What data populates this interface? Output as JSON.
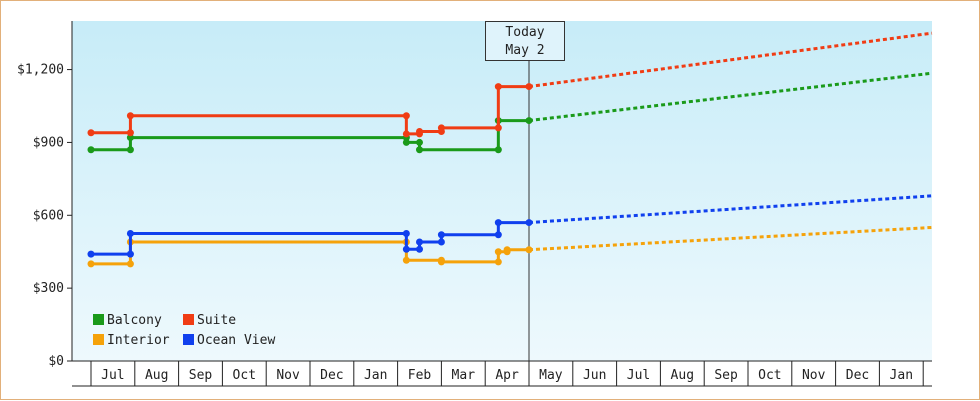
{
  "chart_data": {
    "type": "line",
    "title": "",
    "xlabel": "",
    "ylabel": "",
    "ylim": [
      0,
      1200
    ],
    "yticks": [
      "$0",
      "$300",
      "$600",
      "$900",
      "$1,200"
    ],
    "ytick_values": [
      0,
      300,
      600,
      900,
      1200
    ],
    "x_month_ticks": [
      "Jul",
      "Aug",
      "Sep",
      "Oct",
      "Nov",
      "Dec",
      "Jan",
      "Feb",
      "Mar",
      "Apr",
      "May",
      "Jun",
      "Jul",
      "Aug",
      "Sep",
      "Oct",
      "Nov",
      "Dec",
      "Jan"
    ],
    "today_marker": {
      "line1": "Today",
      "line2": "May 2"
    },
    "grid": false,
    "legend_position": "bottom-left",
    "series": [
      {
        "name": "Balcony",
        "color": "#1a9a1a",
        "history": [
          [
            0.0,
            870
          ],
          [
            0.9,
            870
          ],
          [
            0.9,
            920
          ],
          [
            7.2,
            920
          ],
          [
            7.2,
            900
          ],
          [
            7.5,
            900
          ],
          [
            7.5,
            870
          ],
          [
            9.3,
            870
          ],
          [
            9.3,
            990
          ],
          [
            10.0,
            990
          ]
        ],
        "forecast": [
          [
            10.0,
            990
          ],
          [
            19.2,
            1185
          ]
        ]
      },
      {
        "name": "Suite",
        "color": "#f03c14",
        "history": [
          [
            0.0,
            940
          ],
          [
            0.9,
            940
          ],
          [
            0.9,
            1010
          ],
          [
            7.2,
            1010
          ],
          [
            7.2,
            935
          ],
          [
            7.5,
            935
          ],
          [
            7.5,
            945
          ],
          [
            8.0,
            945
          ],
          [
            8.0,
            960
          ],
          [
            9.3,
            960
          ],
          [
            9.3,
            1130
          ],
          [
            10.0,
            1130
          ]
        ],
        "forecast": [
          [
            10.0,
            1130
          ],
          [
            19.2,
            1350
          ]
        ]
      },
      {
        "name": "Interior",
        "color": "#f5a20a",
        "history": [
          [
            0.0,
            400
          ],
          [
            0.9,
            400
          ],
          [
            0.9,
            490
          ],
          [
            7.2,
            490
          ],
          [
            7.2,
            415
          ],
          [
            8.0,
            415
          ],
          [
            8.0,
            408
          ],
          [
            9.3,
            408
          ],
          [
            9.3,
            450
          ],
          [
            9.5,
            450
          ],
          [
            9.5,
            458
          ],
          [
            10.0,
            458
          ]
        ],
        "forecast": [
          [
            10.0,
            458
          ],
          [
            19.2,
            550
          ]
        ]
      },
      {
        "name": "Ocean View",
        "color": "#1040ee",
        "history": [
          [
            0.0,
            440
          ],
          [
            0.9,
            440
          ],
          [
            0.9,
            525
          ],
          [
            7.2,
            525
          ],
          [
            7.2,
            460
          ],
          [
            7.5,
            460
          ],
          [
            7.5,
            490
          ],
          [
            8.0,
            490
          ],
          [
            8.0,
            520
          ],
          [
            9.3,
            520
          ],
          [
            9.3,
            570
          ],
          [
            10.0,
            570
          ]
        ],
        "forecast": [
          [
            10.0,
            570
          ],
          [
            19.2,
            680
          ]
        ]
      }
    ],
    "legend": [
      {
        "label": "Balcony",
        "color": "#1a9a1a"
      },
      {
        "label": "Suite",
        "color": "#f03c14"
      },
      {
        "label": "Interior",
        "color": "#f5a20a"
      },
      {
        "label": "Ocean View",
        "color": "#1040ee"
      }
    ]
  }
}
